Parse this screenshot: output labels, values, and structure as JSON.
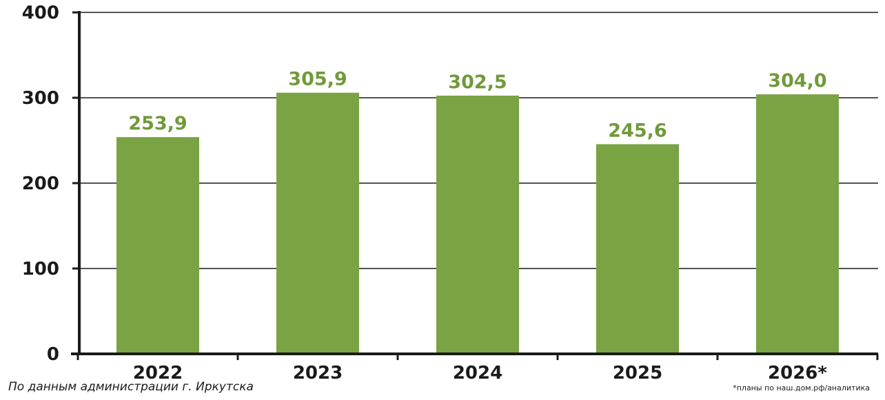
{
  "chart_data": {
    "type": "bar",
    "categories": [
      "2022",
      "2023",
      "2024",
      "2025",
      "2026*"
    ],
    "values": [
      253.9,
      305.9,
      302.5,
      245.6,
      304.0
    ],
    "value_labels": [
      "253,9",
      "305,9",
      "302,5",
      "245,6",
      "304,0"
    ],
    "ylim": [
      0,
      400
    ],
    "yticks": [
      0,
      100,
      200,
      300,
      400
    ],
    "ytick_labels": [
      "0",
      "100",
      "200",
      "300",
      "400"
    ],
    "grid": true,
    "legend": "none",
    "bar_color": "#7aa343",
    "label_color": "#6f9a3a",
    "axis_color": "#1a1a1a"
  },
  "source_note": "По данным администрации г. Иркутска",
  "footnote": "*планы по наш.дом.рф/аналитика"
}
